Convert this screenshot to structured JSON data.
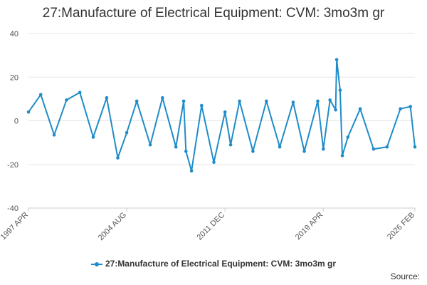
{
  "chart_data": {
    "type": "line",
    "title": "27:Manufacture of Electrical Equipment: CVM: 3mo3m gr",
    "xlabel": "",
    "ylabel": "",
    "x_start": "1997-04",
    "x_end": "2026-02",
    "x_ticks": [
      "1997 APR",
      "2004 AUG",
      "2011 DEC",
      "2019 APR",
      "2026 FEB"
    ],
    "ylim": [
      -40,
      40
    ],
    "y_ticks": [
      "40",
      "20",
      "0",
      "-20",
      "-40"
    ],
    "grid": true,
    "legend_position": "bottom",
    "color": "#1f8cc8",
    "series": [
      {
        "name": "27:Manufacture of Electrical Equipment: CVM: 3mo3m gr",
        "x": [
          "1997-04",
          "1998-03",
          "1999-03",
          "2000-02",
          "2001-02",
          "2002-02",
          "2003-02",
          "2003-12",
          "2004-08",
          "2005-05",
          "2006-05",
          "2007-04",
          "2008-04",
          "2008-11",
          "2009-01",
          "2009-06",
          "2010-03",
          "2011-02",
          "2011-12",
          "2012-05",
          "2013-01",
          "2014-01",
          "2015-01",
          "2016-01",
          "2017-01",
          "2017-11",
          "2018-11",
          "2019-04",
          "2019-10",
          "2020-03",
          "2020-04",
          "2020-07",
          "2020-09",
          "2021-02",
          "2022-01",
          "2023-01",
          "2024-01",
          "2025-01",
          "2025-10",
          "2026-02"
        ],
        "values": [
          4.0,
          12.0,
          -6.5,
          9.5,
          13.0,
          -7.5,
          10.5,
          -17.0,
          -5.5,
          9.0,
          -11.0,
          10.5,
          -12.0,
          9.0,
          -14.0,
          -23.0,
          7.0,
          -19.0,
          4.0,
          -11.0,
          9.0,
          -14.0,
          9.0,
          -12.0,
          8.5,
          -14.0,
          9.0,
          -13.0,
          9.5,
          5.0,
          28.0,
          14.0,
          -16.0,
          -7.5,
          5.5,
          -13.0,
          -12.0,
          5.5,
          6.5,
          -12.0
        ]
      }
    ]
  },
  "legend": {
    "label": "27:Manufacture of Electrical Equipment: CVM: 3mo3m gr"
  },
  "footer": {
    "source_label": "Source:"
  }
}
